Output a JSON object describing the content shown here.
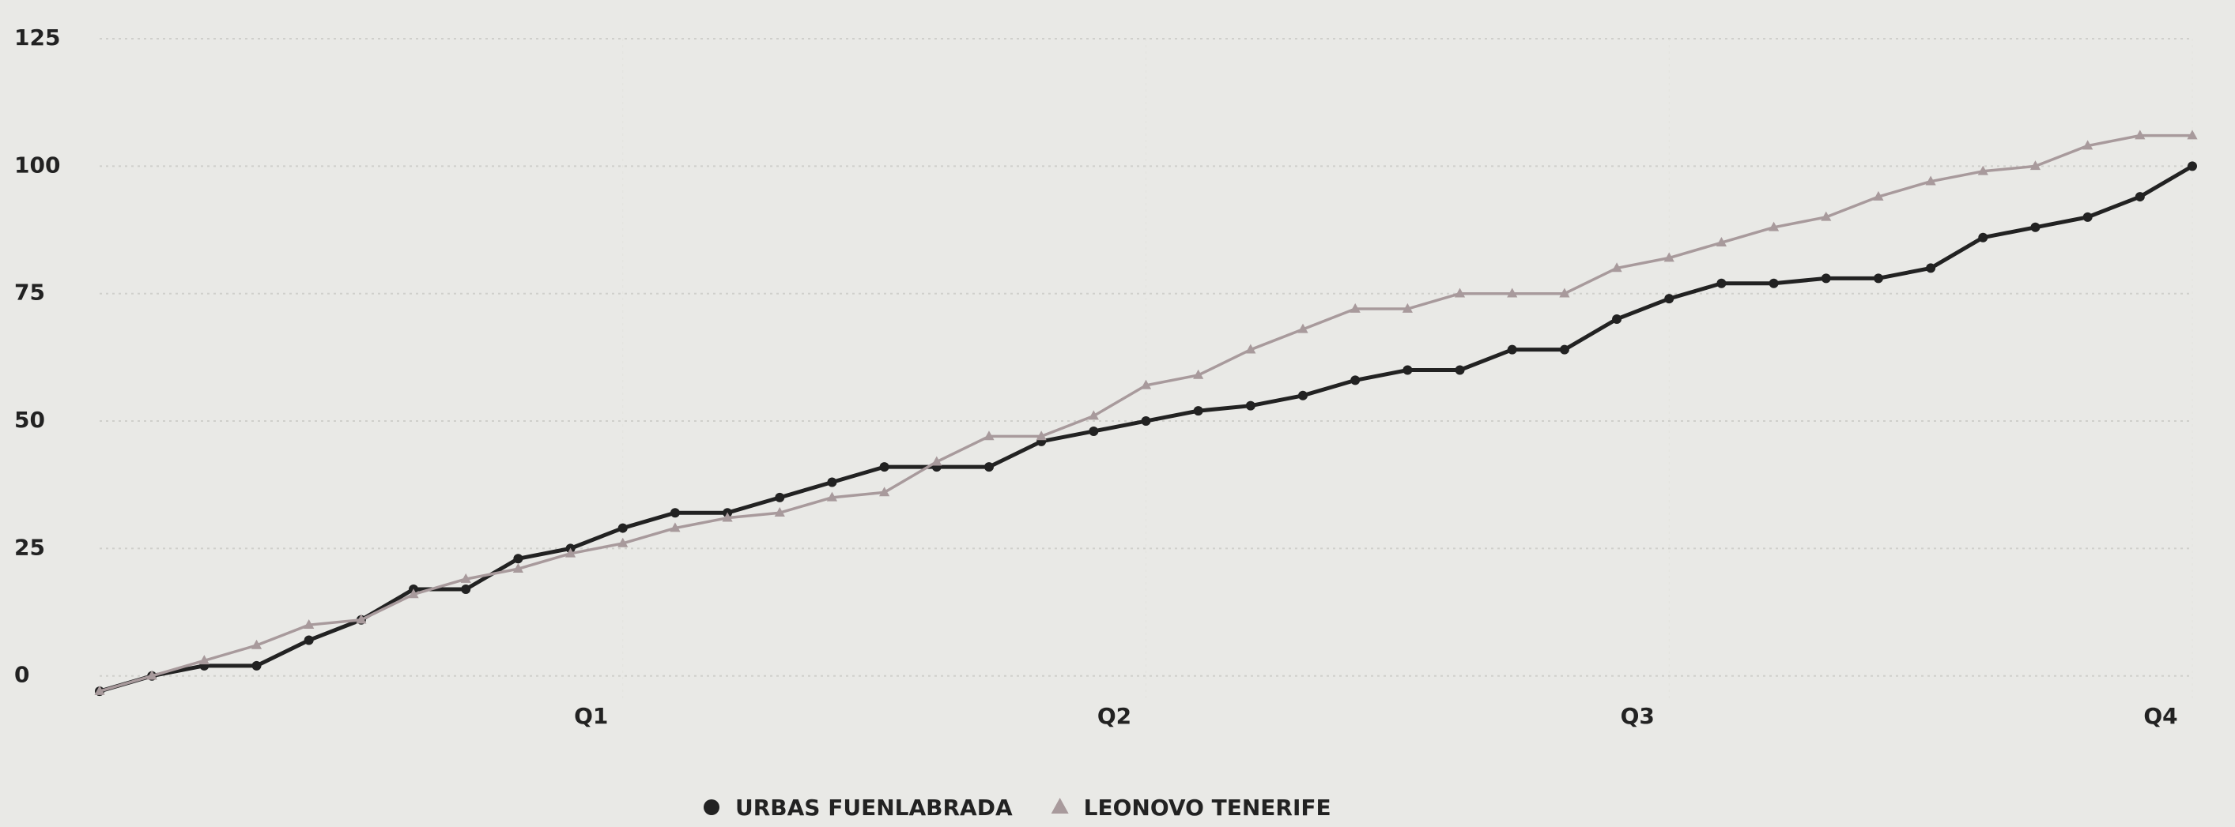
{
  "chart_data": {
    "type": "line",
    "x": [
      0,
      1,
      2,
      3,
      4,
      5,
      6,
      7,
      8,
      9,
      10,
      11,
      12,
      13,
      14,
      15,
      16,
      17,
      18,
      19,
      20,
      21,
      22,
      23,
      24,
      25,
      26,
      27,
      28,
      29,
      30,
      31,
      32,
      33,
      34,
      35,
      36,
      37,
      38,
      39,
      40
    ],
    "xlim": [
      0,
      40
    ],
    "xticks": [
      {
        "value": 10,
        "label": "Q1"
      },
      {
        "value": 20,
        "label": "Q2"
      },
      {
        "value": 30,
        "label": "Q3"
      },
      {
        "value": 40,
        "label": "Q4"
      }
    ],
    "ylim": [
      -5,
      125
    ],
    "yticks": [
      0,
      25,
      50,
      75,
      100,
      125
    ],
    "grid": true,
    "series": [
      {
        "name": "URBAS FUENLABRADA",
        "color": "#222222",
        "marker": "circle",
        "values": [
          -3,
          0,
          2,
          2,
          7,
          11,
          17,
          17,
          23,
          25,
          29,
          32,
          32,
          35,
          38,
          41,
          41,
          41,
          46,
          48,
          50,
          52,
          53,
          55,
          58,
          60,
          60,
          64,
          64,
          70,
          74,
          77,
          77,
          78,
          78,
          80,
          86,
          88,
          90,
          94,
          100
        ]
      },
      {
        "name": "LEONOVO TENERIFE",
        "color": "#a89a9c",
        "marker": "triangle",
        "values": [
          -3,
          0,
          3,
          6,
          10,
          11,
          16,
          19,
          21,
          24,
          26,
          29,
          31,
          32,
          35,
          36,
          42,
          47,
          47,
          51,
          57,
          59,
          64,
          68,
          72,
          72,
          75,
          75,
          75,
          80,
          82,
          85,
          88,
          90,
          94,
          97,
          99,
          100,
          104,
          106,
          106
        ]
      }
    ]
  }
}
